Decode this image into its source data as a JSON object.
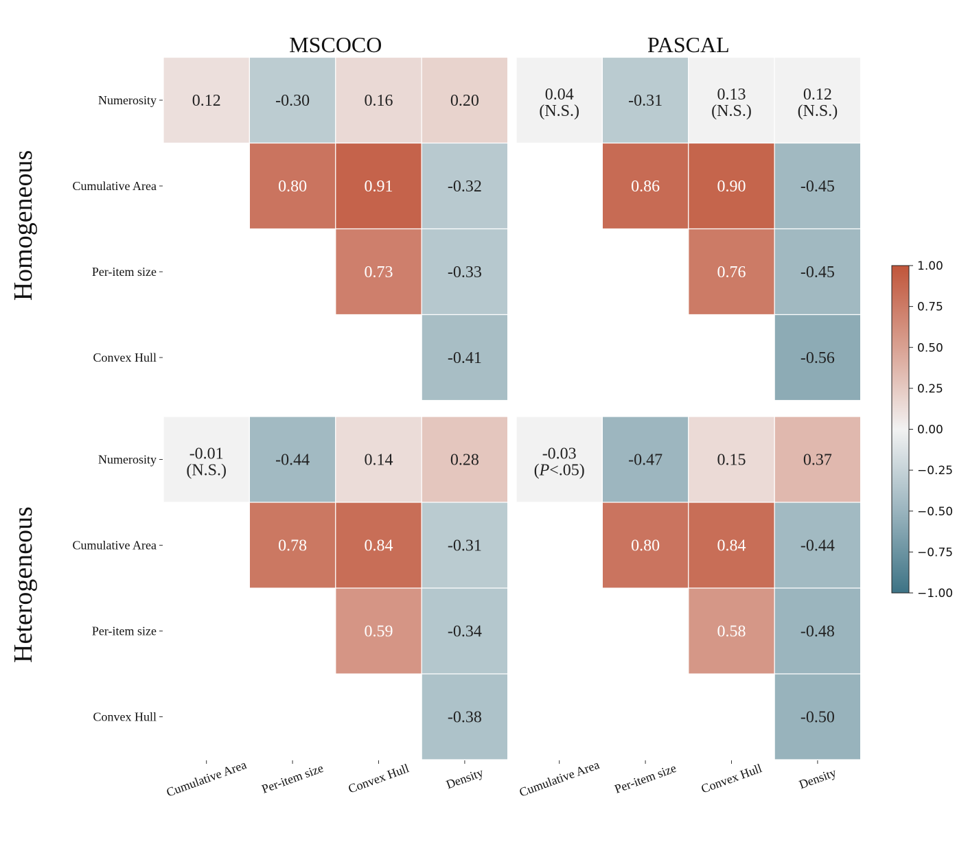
{
  "chart_data": {
    "type": "heatmap",
    "colorbar": {
      "min": -1.0,
      "max": 1.0,
      "low_color": "#3d7385",
      "mid_color": "#f2f2f2",
      "high_color": "#c0553a",
      "ticks": [
        "1.00",
        "0.75",
        "0.50",
        "0.25",
        "0.00",
        "−0.25",
        "−0.50",
        "−0.75",
        "−1.00"
      ],
      "tick_values": [
        1.0,
        0.75,
        0.5,
        0.25,
        0.0,
        -0.25,
        -0.5,
        -0.75,
        -1.0
      ]
    },
    "row_group_labels": [
      "Homogeneous",
      "Heterogeneous"
    ],
    "column_titles": [
      "MSCOCO",
      "PASCAL"
    ],
    "row_labels": [
      "Numerosity",
      "Cumulative Area",
      "Per-item size",
      "Convex Hull"
    ],
    "column_labels": [
      "Cumulative Area",
      "Per-item size",
      "Convex Hull",
      "Density"
    ],
    "panels": [
      {
        "group": "Homogeneous",
        "dataset": "MSCOCO",
        "cells": [
          [
            {
              "v": 0.12,
              "t": "0.12"
            },
            {
              "v": -0.3,
              "t": "-0.30"
            },
            {
              "v": 0.16,
              "t": "0.16"
            },
            {
              "v": 0.2,
              "t": "0.20"
            }
          ],
          [
            null,
            {
              "v": 0.8,
              "t": "0.80"
            },
            {
              "v": 0.91,
              "t": "0.91"
            },
            {
              "v": -0.32,
              "t": "-0.32"
            }
          ],
          [
            null,
            null,
            {
              "v": 0.73,
              "t": "0.73"
            },
            {
              "v": -0.33,
              "t": "-0.33"
            }
          ],
          [
            null,
            null,
            null,
            {
              "v": -0.41,
              "t": "-0.41"
            }
          ]
        ]
      },
      {
        "group": "Homogeneous",
        "dataset": "PASCAL",
        "cells": [
          [
            {
              "v": 0.04,
              "t": "0.04",
              "note": "(N.S.)",
              "ns": true
            },
            {
              "v": -0.31,
              "t": "-0.31"
            },
            {
              "v": 0.13,
              "t": "0.13",
              "note": "(N.S.)",
              "ns": true
            },
            {
              "v": 0.12,
              "t": "0.12",
              "note": "(N.S.)",
              "ns": true
            }
          ],
          [
            null,
            {
              "v": 0.86,
              "t": "0.86"
            },
            {
              "v": 0.9,
              "t": "0.90"
            },
            {
              "v": -0.45,
              "t": "-0.45"
            }
          ],
          [
            null,
            null,
            {
              "v": 0.76,
              "t": "0.76"
            },
            {
              "v": -0.45,
              "t": "-0.45"
            }
          ],
          [
            null,
            null,
            null,
            {
              "v": -0.56,
              "t": "-0.56"
            }
          ]
        ]
      },
      {
        "group": "Heterogeneous",
        "dataset": "MSCOCO",
        "cells": [
          [
            {
              "v": -0.01,
              "t": "-0.01",
              "note": "(N.S.)",
              "ns": true
            },
            {
              "v": -0.44,
              "t": "-0.44"
            },
            {
              "v": 0.14,
              "t": "0.14"
            },
            {
              "v": 0.28,
              "t": "0.28"
            }
          ],
          [
            null,
            {
              "v": 0.78,
              "t": "0.78"
            },
            {
              "v": 0.84,
              "t": "0.84"
            },
            {
              "v": -0.31,
              "t": "-0.31"
            }
          ],
          [
            null,
            null,
            {
              "v": 0.59,
              "t": "0.59"
            },
            {
              "v": -0.34,
              "t": "-0.34"
            }
          ],
          [
            null,
            null,
            null,
            {
              "v": -0.38,
              "t": "-0.38"
            }
          ]
        ]
      },
      {
        "group": "Heterogeneous",
        "dataset": "PASCAL",
        "cells": [
          [
            {
              "v": -0.03,
              "t": "-0.03",
              "note_prefix": "(",
              "note_italic": "P",
              "note_suffix": "<.05)",
              "ns": true
            },
            {
              "v": -0.47,
              "t": "-0.47"
            },
            {
              "v": 0.15,
              "t": "0.15"
            },
            {
              "v": 0.37,
              "t": "0.37"
            }
          ],
          [
            null,
            {
              "v": 0.8,
              "t": "0.80"
            },
            {
              "v": 0.84,
              "t": "0.84"
            },
            {
              "v": -0.44,
              "t": "-0.44"
            }
          ],
          [
            null,
            null,
            {
              "v": 0.58,
              "t": "0.58"
            },
            {
              "v": -0.48,
              "t": "-0.48"
            }
          ],
          [
            null,
            null,
            null,
            {
              "v": -0.5,
              "t": "-0.50"
            }
          ]
        ]
      }
    ]
  }
}
